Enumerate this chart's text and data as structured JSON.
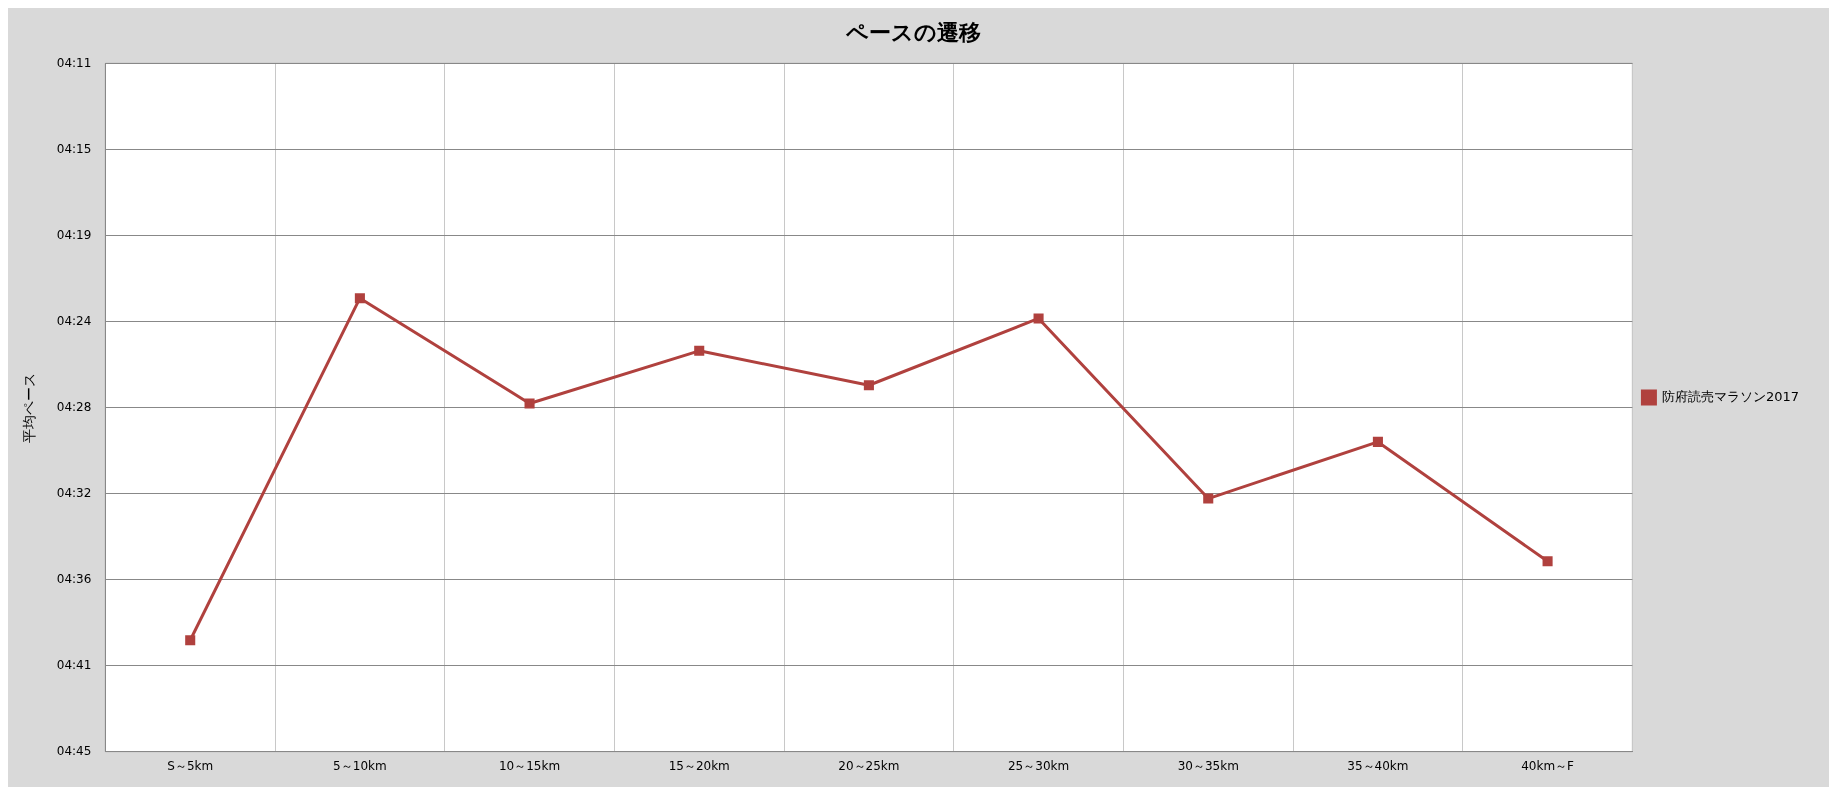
{
  "chart_data": {
    "type": "line",
    "title": "ペースの遷移",
    "ylabel": "平均ペース",
    "categories": [
      "S～5km",
      "5～10km",
      "10～15km",
      "15～20km",
      "20～25km",
      "25～30km",
      "30～35km",
      "35～40km",
      "40km～F"
    ],
    "series": [
      {
        "name": "防府読売マラソン2017",
        "color": "#b0413e",
        "values": [
          279.5,
          262.6,
          267.8,
          265.2,
          266.9,
          263.6,
          272.5,
          269.7,
          275.6
        ]
      }
    ],
    "ylim": [
      285,
      251
    ],
    "yticks": [
      {
        "value": 251,
        "label": "04:11"
      },
      {
        "value": 255.25,
        "label": "04:15"
      },
      {
        "value": 259.5,
        "label": "04:19"
      },
      {
        "value": 263.75,
        "label": "04:24"
      },
      {
        "value": 268,
        "label": "04:28"
      },
      {
        "value": 272.25,
        "label": "04:32"
      },
      {
        "value": 276.5,
        "label": "04:36"
      },
      {
        "value": 280.75,
        "label": "04:41"
      },
      {
        "value": 285,
        "label": "04:45"
      }
    ],
    "grid": true,
    "legend": "right",
    "marker": "square",
    "line_style": "solid"
  }
}
